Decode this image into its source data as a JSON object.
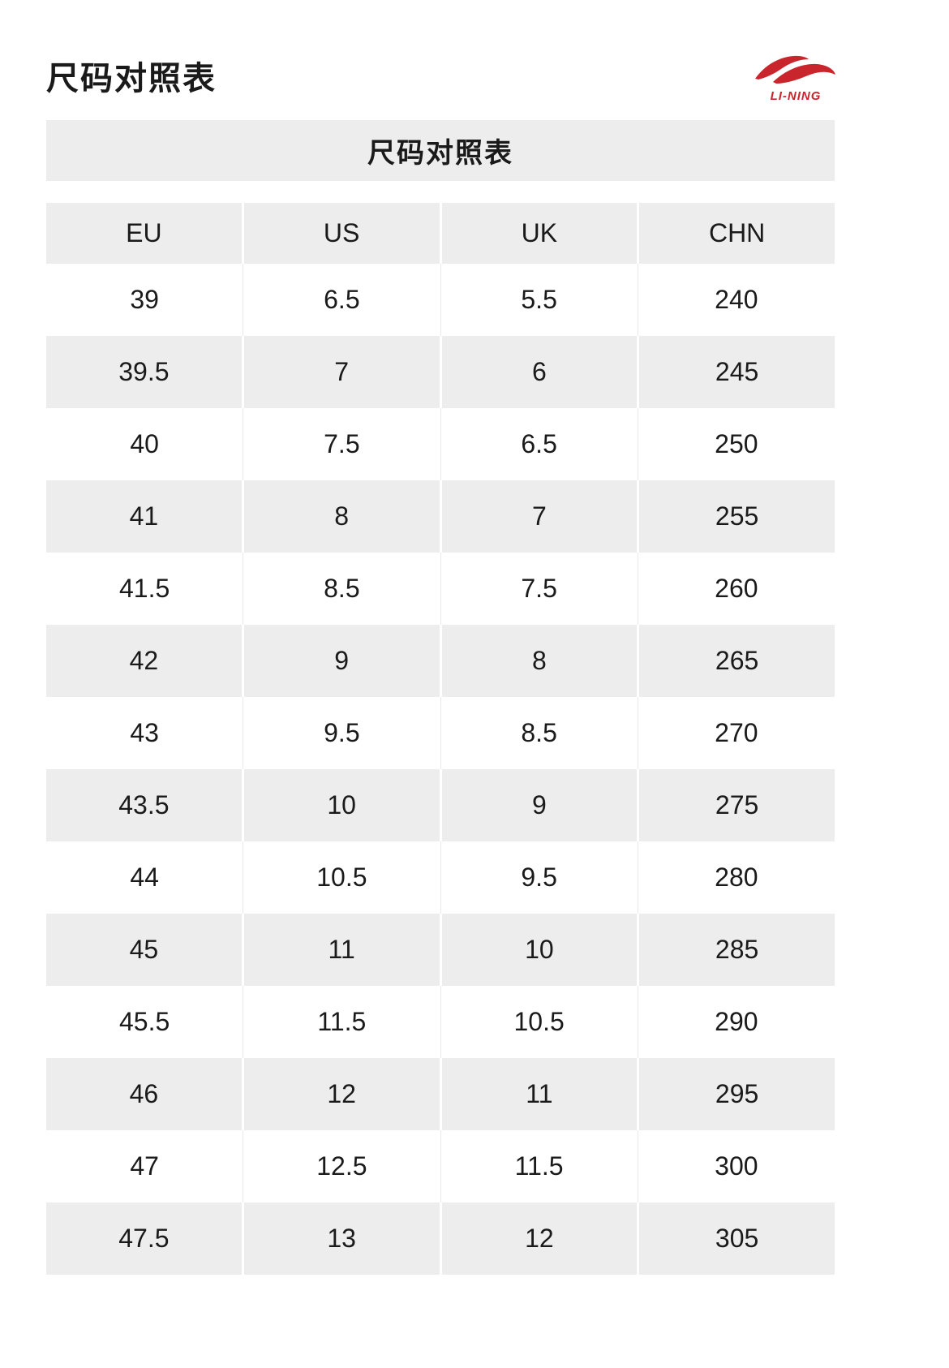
{
  "page": {
    "title": "尺码对照表",
    "brand": {
      "name": "LI-NING",
      "color": "#c9252d"
    }
  },
  "table": {
    "title": "尺码对照表",
    "columns": [
      "EU",
      "US",
      "UK",
      "CHN"
    ],
    "rows": [
      [
        "39",
        "6.5",
        "5.5",
        "240"
      ],
      [
        "39.5",
        "7",
        "6",
        "245"
      ],
      [
        "40",
        "7.5",
        "6.5",
        "250"
      ],
      [
        "41",
        "8",
        "7",
        "255"
      ],
      [
        "41.5",
        "8.5",
        "7.5",
        "260"
      ],
      [
        "42",
        "9",
        "8",
        "265"
      ],
      [
        "43",
        "9.5",
        "8.5",
        "270"
      ],
      [
        "43.5",
        "10",
        "9",
        "275"
      ],
      [
        "44",
        "10.5",
        "9.5",
        "280"
      ],
      [
        "45",
        "11",
        "10",
        "285"
      ],
      [
        "45.5",
        "11.5",
        "10.5",
        "290"
      ],
      [
        "46",
        "12",
        "11",
        "295"
      ],
      [
        "47",
        "12.5",
        "11.5",
        "300"
      ],
      [
        "47.5",
        "13",
        "12",
        "305"
      ]
    ],
    "colors": {
      "band": "#ededed",
      "text": "#1a1a1a"
    }
  }
}
